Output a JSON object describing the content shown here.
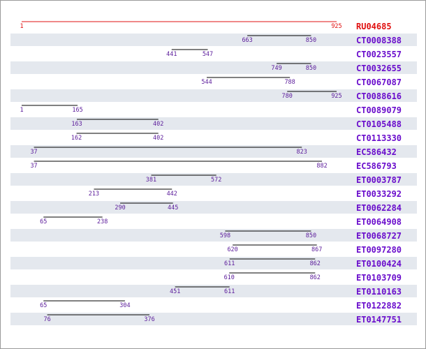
{
  "chart_data": {
    "type": "alignment-map",
    "reference": {
      "name": "RU04685",
      "start": 1,
      "end": 925
    },
    "alignments": [
      {
        "name": "CT0008388",
        "start": 663,
        "end": 850
      },
      {
        "name": "CT0023557",
        "start": 441,
        "end": 547
      },
      {
        "name": "CT0032655",
        "start": 749,
        "end": 850
      },
      {
        "name": "CT0067087",
        "start": 544,
        "end": 788
      },
      {
        "name": "CT0088616",
        "start": 780,
        "end": 925
      },
      {
        "name": "CT0089079",
        "start": 1,
        "end": 165
      },
      {
        "name": "CT0105488",
        "start": 163,
        "end": 402
      },
      {
        "name": "CT0113330",
        "start": 162,
        "end": 402
      },
      {
        "name": "EC586432",
        "start": 37,
        "end": 823
      },
      {
        "name": "EC586793",
        "start": 37,
        "end": 882
      },
      {
        "name": "ET0003787",
        "start": 381,
        "end": 572
      },
      {
        "name": "ET0033292",
        "start": 213,
        "end": 442
      },
      {
        "name": "ET0062284",
        "start": 290,
        "end": 445
      },
      {
        "name": "ET0064908",
        "start": 65,
        "end": 238
      },
      {
        "name": "ET0068727",
        "start": 598,
        "end": 850
      },
      {
        "name": "ET0097280",
        "start": 620,
        "end": 867
      },
      {
        "name": "ET0100424",
        "start": 611,
        "end": 862
      },
      {
        "name": "ET0103709",
        "start": 610,
        "end": 862
      },
      {
        "name": "ET0110163",
        "start": 451,
        "end": 611
      },
      {
        "name": "ET0122882",
        "start": 65,
        "end": 304
      },
      {
        "name": "ET0147751",
        "start": 76,
        "end": 376
      }
    ],
    "colors": {
      "reference": "#e01010",
      "label": "#6a0dcc",
      "numbers": "#5a1a9a",
      "line": "#000000",
      "band": "#e4e8ee"
    }
  }
}
